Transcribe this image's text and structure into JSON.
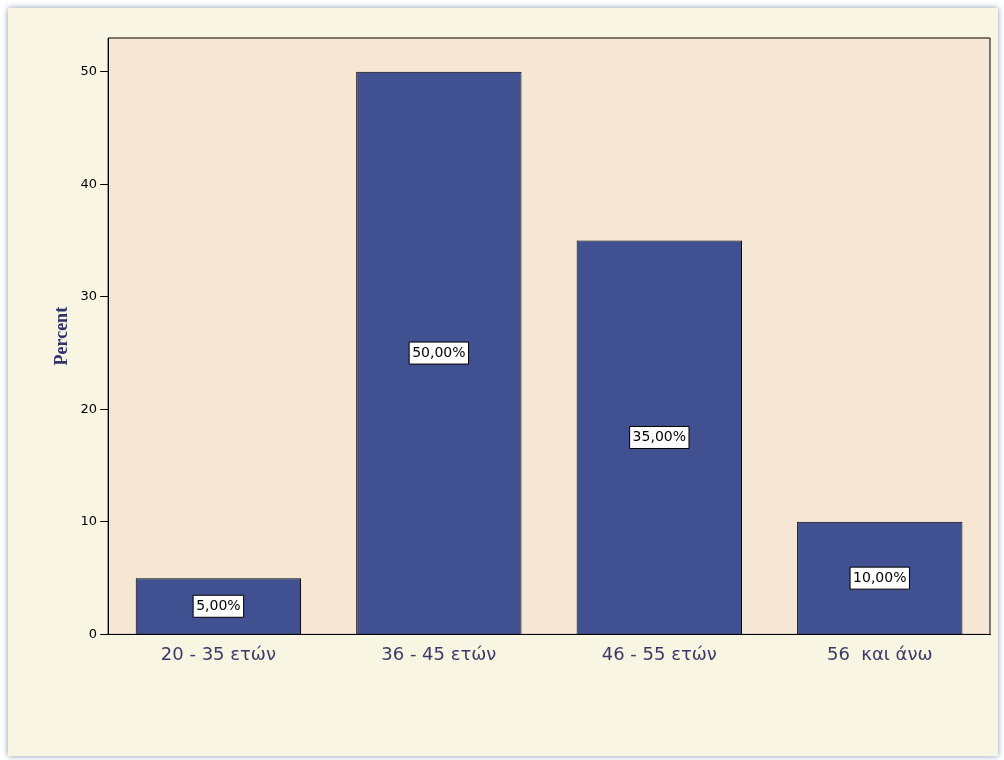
{
  "chart_data": {
    "type": "bar",
    "ylabel": "Percent",
    "categories": [
      "20 - 35 ετών",
      "36 - 45 ετών",
      "46 - 55 ετών",
      "56  και άνω"
    ],
    "values": [
      5,
      50,
      35,
      10
    ],
    "color": "#405090",
    "value_labels": [
      "5,00%",
      "50,00%",
      "35,00%",
      "10,00%"
    ],
    "ylim": [
      0,
      53
    ],
    "yticks": [
      0,
      10,
      20,
      30,
      40,
      50
    ],
    "grid": false,
    "legend": false
  }
}
